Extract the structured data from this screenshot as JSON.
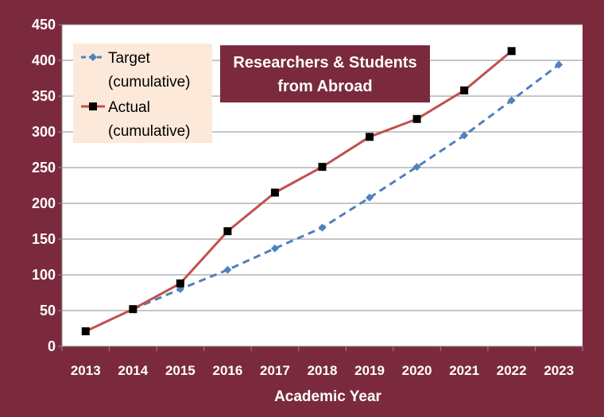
{
  "colors": {
    "frame": "#7b2a3e",
    "plot_bg": "#ffffff",
    "grid": "#8c8c8c",
    "target": "#4f81bd",
    "actual": "#c0504d",
    "actual_marker": "#000000",
    "legend_bg": "#fce9d9",
    "title_bg": "#7b2a3e",
    "text_light": "#ffffff",
    "text_dark": "#000000"
  },
  "chart_data": {
    "type": "line",
    "title": [
      "Researchers & Students",
      "from Abroad"
    ],
    "xlabel": "Academic Year",
    "ylabel": "",
    "categories": [
      "2013",
      "2014",
      "2015",
      "2016",
      "2017",
      "2018",
      "2019",
      "2020",
      "2021",
      "2022",
      "2023"
    ],
    "ylim": [
      0,
      450
    ],
    "yticks": [
      "0",
      "50",
      "100",
      "150",
      "200",
      "250",
      "300",
      "350",
      "400",
      "450"
    ],
    "grid": true,
    "legend_position": "top-left",
    "series": [
      {
        "name": [
          "Target",
          "(cumulative)"
        ],
        "style": "dashed",
        "marker": "diamond",
        "values": [
          null,
          52,
          80,
          107,
          137,
          166,
          208,
          251,
          295,
          344,
          394
        ]
      },
      {
        "name": [
          "Actual",
          "(cumulative)"
        ],
        "style": "solid",
        "marker": "square",
        "values": [
          21,
          52,
          88,
          161,
          215,
          251,
          293,
          318,
          358,
          413,
          null
        ]
      }
    ]
  }
}
